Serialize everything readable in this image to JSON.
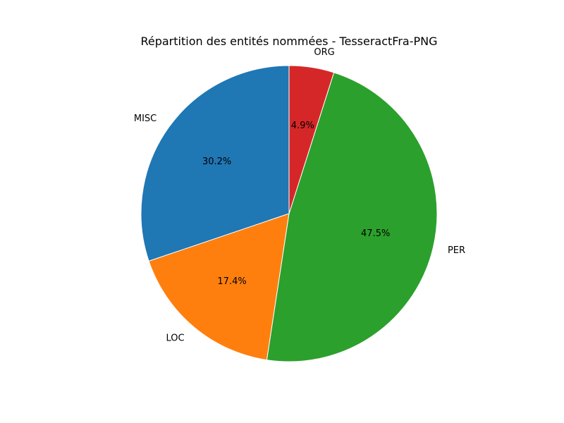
{
  "chart_data": {
    "type": "pie",
    "title": "Répartition des entités nommées - TesseractFra-PNG",
    "start": "top",
    "direction": "counterclockwise",
    "slices": [
      {
        "label": "MISC",
        "value": 30.2,
        "pct_label": "30.2%",
        "color": "#1f77b4"
      },
      {
        "label": "LOC",
        "value": 17.4,
        "pct_label": "17.4%",
        "color": "#ff7f0e"
      },
      {
        "label": "PER",
        "value": 47.5,
        "pct_label": "47.5%",
        "color": "#2ca02c"
      },
      {
        "label": "ORG",
        "value": 4.9,
        "pct_label": "4.9%",
        "color": "#d62728"
      }
    ]
  }
}
